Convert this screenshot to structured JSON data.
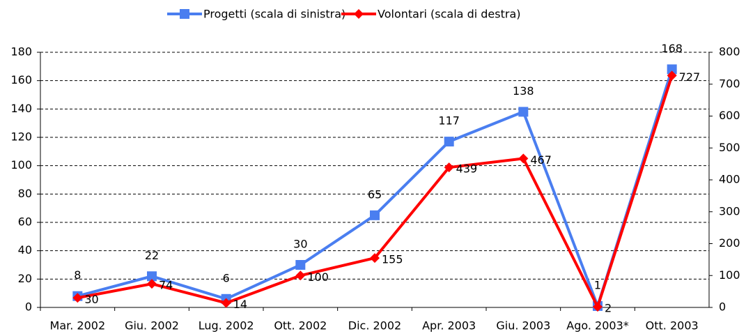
{
  "chart_data": {
    "type": "line",
    "categories": [
      "Mar. 2002",
      "Giu. 2002",
      "Lug. 2002",
      "Ott. 2002",
      "Dic. 2002",
      "Apr. 2003",
      "Giu. 2003",
      "Ago. 2003*",
      "Ott. 2003"
    ],
    "series": [
      {
        "name": "Progetti (scala di sinistra)",
        "color": "#4a7ef0",
        "marker": "square",
        "values": [
          8,
          22,
          6,
          30,
          65,
          117,
          138,
          1,
          168
        ]
      },
      {
        "name": "Volontari (scala di destra)",
        "color": "#ff0000",
        "marker": "diamond",
        "axis": "y2",
        "values": [
          30,
          74,
          14,
          100,
          155,
          439,
          467,
          2,
          727
        ]
      }
    ],
    "ylim": [
      0,
      180
    ],
    "yticks": [
      0,
      20,
      40,
      60,
      80,
      100,
      120,
      140,
      160,
      180
    ],
    "y2lim": [
      0,
      800
    ],
    "y2ticks": [
      0,
      100,
      200,
      300,
      400,
      500,
      600,
      700,
      800
    ],
    "grid": true,
    "legend": "top"
  }
}
